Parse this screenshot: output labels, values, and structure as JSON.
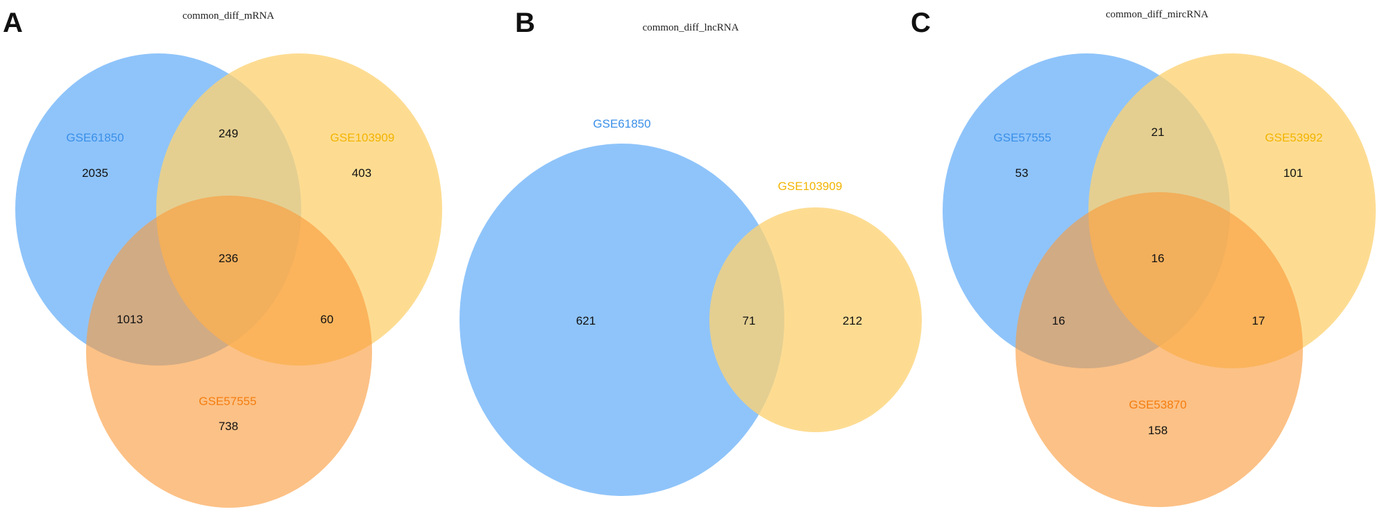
{
  "colors": {
    "blue": "#6fb3f8",
    "yellow": "#fdd273",
    "orange": "#fa9b3c",
    "blue_text": "#3a8fe8",
    "yellow_text": "#f2b400",
    "orange_text": "#f47d0f"
  },
  "panels": {
    "a": {
      "letter": "A",
      "title": "common_diff_mRNA",
      "sets": {
        "blue": "GSE61850",
        "yellow": "GSE103909",
        "orange": "GSE57555"
      },
      "counts": {
        "blue_only": "2035",
        "yellow_only": "403",
        "orange_only": "738",
        "blue_yellow": "249",
        "blue_orange": "1013",
        "yellow_orange": "60",
        "all": "236"
      }
    },
    "b": {
      "letter": "B",
      "title": "common_diff_lncRNA",
      "sets": {
        "blue": "GSE61850",
        "yellow": "GSE103909"
      },
      "counts": {
        "blue_only": "621",
        "both": "71",
        "yellow_only": "212"
      }
    },
    "c": {
      "letter": "C",
      "title": "common_diff_mircRNA",
      "sets": {
        "blue": "GSE57555",
        "yellow": "GSE53992",
        "orange": "GSE53870"
      },
      "counts": {
        "blue_only": "53",
        "yellow_only": "101",
        "orange_only": "158",
        "blue_yellow": "21",
        "blue_orange": "16",
        "yellow_orange": "17",
        "all": "16"
      }
    }
  }
}
